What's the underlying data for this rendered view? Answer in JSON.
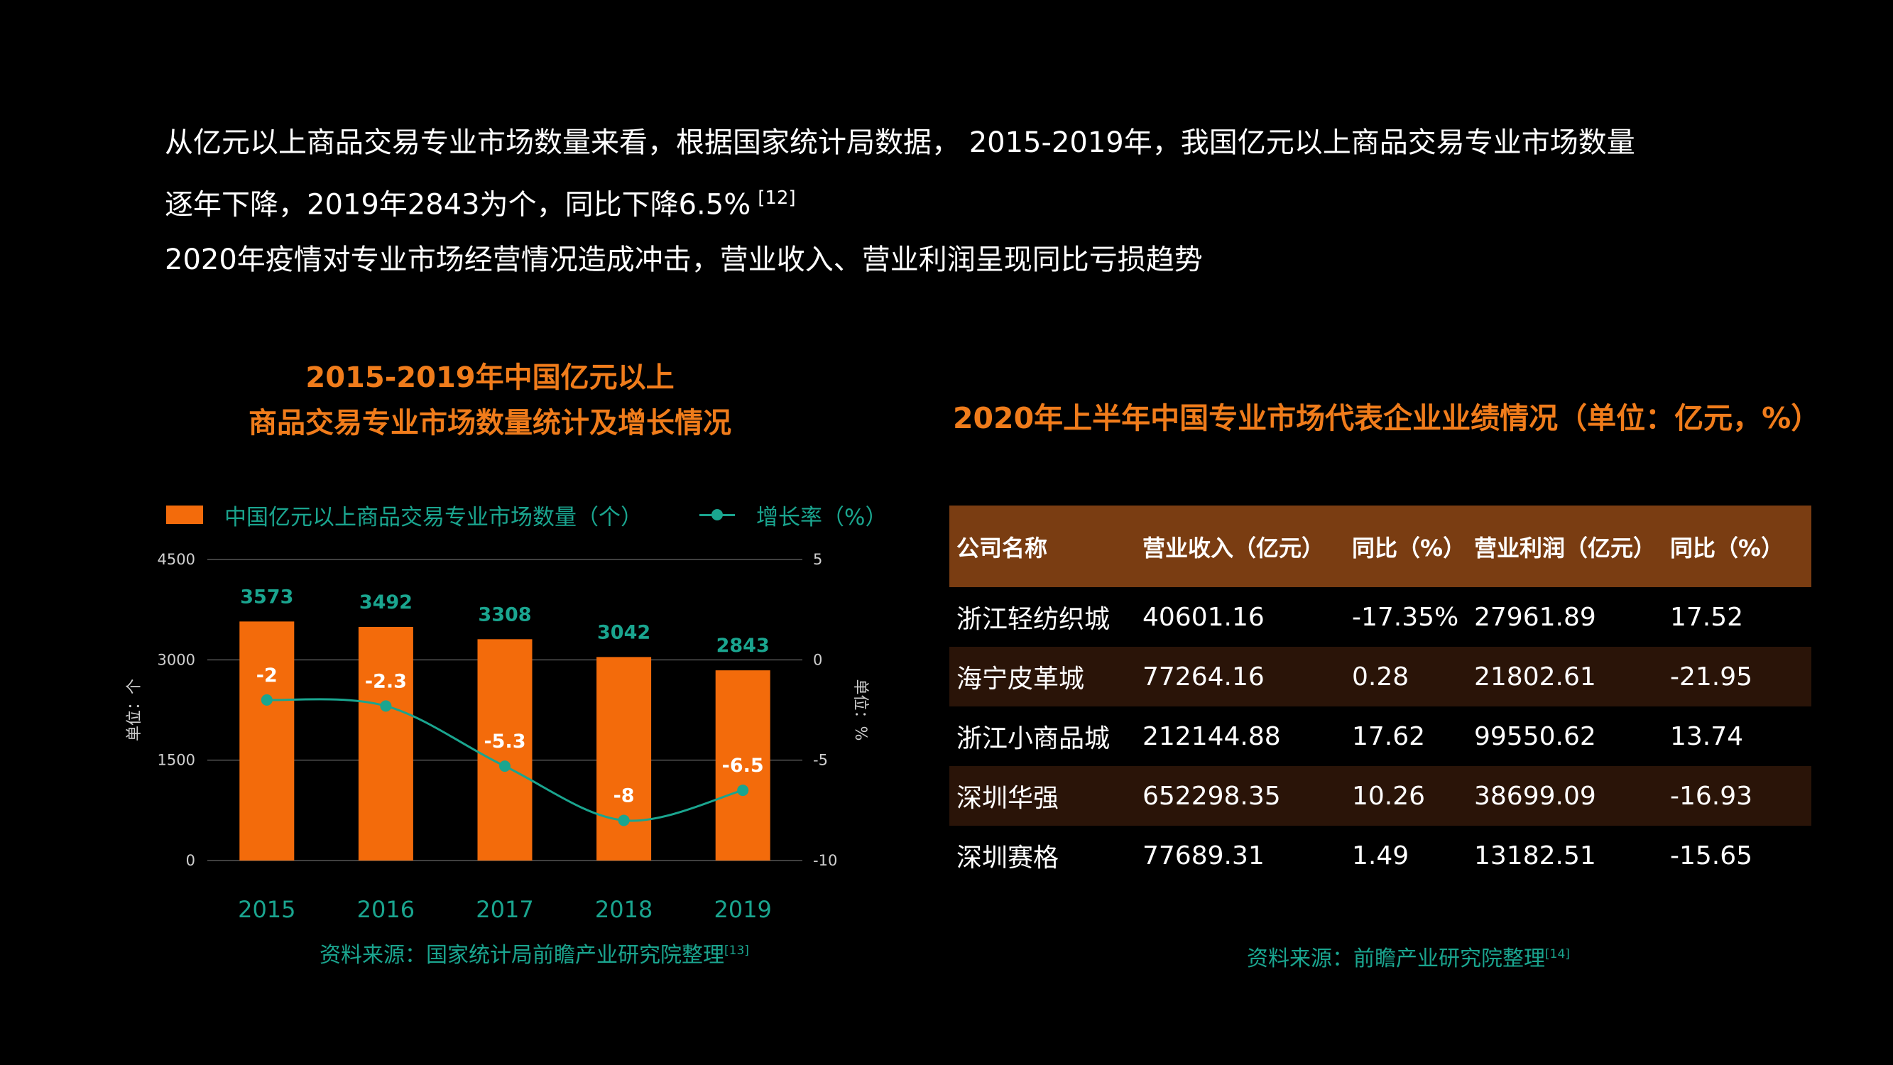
{
  "intro": {
    "line1": "从亿元以上商品交易专业市场数量来看，根据国家统计局数据，  2015-2019年，我国亿元以上商品交易专业市场数量",
    "line2": "逐年下降，2019年2843为个，同比下降6.5%",
    "line2_ref": "[12]",
    "line3": "2020年疫情对专业市场经营情况造成冲击，营业收入、营业利润呈现同比亏损趋势"
  },
  "chart_title": {
    "line1": "2015-2019年中国亿元以上",
    "line2": "商品交易专业市场数量统计及增长情况"
  },
  "legend": {
    "bar": "中国亿元以上商品交易专业市场数量（个）",
    "line": "增长率（%）"
  },
  "chart_data": {
    "type": "bar",
    "categories": [
      "2015",
      "2016",
      "2017",
      "2018",
      "2019"
    ],
    "series": [
      {
        "name": "中国亿元以上商品交易专业市场数量（个）",
        "type": "bar",
        "axis": "left",
        "values": [
          3573,
          3492,
          3308,
          3042,
          2843
        ],
        "color": "#f36b0b"
      },
      {
        "name": "增长率（%）",
        "type": "line",
        "axis": "right",
        "values": [
          -2,
          -2.3,
          -5.3,
          -8,
          -6.5
        ],
        "color": "#1aa58f"
      }
    ],
    "y_left": {
      "label": "单位：个",
      "ticks": [
        0,
        1500,
        3000,
        4500
      ],
      "ylim": [
        0,
        4500
      ]
    },
    "y_right": {
      "label": "单位：%",
      "ticks": [
        -10,
        -5,
        0,
        5
      ],
      "ylim": [
        -10,
        5
      ]
    },
    "grid": true
  },
  "chart_source": {
    "text": "资料来源：国家统计局前瞻产业研究院整理",
    "ref": "[13]"
  },
  "table": {
    "title": "2020年上半年中国专业市场代表企业业绩情况（单位：亿元，%）",
    "headers": [
      "公司名称",
      "营业收入（亿元）",
      "同比（%）",
      "营业利润（亿元）",
      "同比（%）"
    ],
    "rows": [
      [
        "浙江轻纺织城",
        "40601.16",
        "-17.35%",
        "27961.89",
        "17.52"
      ],
      [
        "海宁皮革城",
        "77264.16",
        "0.28",
        "21802.61",
        "-21.95"
      ],
      [
        "浙江小商品城",
        "212144.88",
        "17.62",
        "99550.62",
        "13.74"
      ],
      [
        "深圳华强",
        "652298.35",
        "10.26",
        "38699.09",
        "-16.93"
      ],
      [
        "深圳赛格",
        "77689.31",
        "1.49",
        "13182.51",
        "-15.65"
      ]
    ],
    "header_color": "#7a3d12",
    "stripe_color": "#2a1408"
  },
  "table_source": {
    "text": "资料来源：前瞻产业研究院整理",
    "ref": "[14]"
  },
  "colors": {
    "accent": "#f07c1b",
    "bar": "#f36b0b",
    "line": "#1aa58f",
    "background": "#000000"
  }
}
